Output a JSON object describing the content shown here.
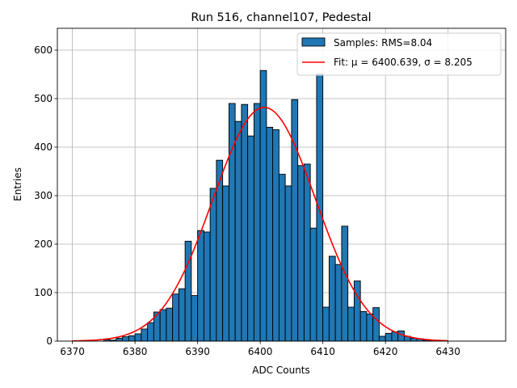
{
  "chart_data": {
    "type": "bar",
    "title": "Run 516, channel107, Pedestal",
    "xlabel": "ADC Counts",
    "ylabel": "Entries",
    "xlim": [
      6367.6,
      6439.2
    ],
    "ylim": [
      0,
      645
    ],
    "xticks": [
      6370,
      6380,
      6390,
      6400,
      6410,
      6420,
      6430
    ],
    "yticks": [
      0,
      100,
      200,
      300,
      400,
      500,
      600
    ],
    "grid": true,
    "legend_placement": "top-right",
    "bin_width": 1,
    "bin_start": 6375,
    "histogram": [
      3,
      2,
      6,
      9,
      11,
      15,
      25,
      38,
      60,
      65,
      68,
      97,
      108,
      206,
      94,
      228,
      225,
      315,
      373,
      320,
      490,
      453,
      488,
      423,
      490,
      558,
      441,
      436,
      344,
      320,
      498,
      362,
      365,
      233,
      551,
      70,
      175,
      158,
      237,
      70,
      124,
      61,
      56,
      69,
      10,
      16,
      19,
      21,
      10,
      6,
      5,
      2,
      1
    ],
    "fit": {
      "mu": 6400.639,
      "sigma": 8.205,
      "amplitude": 482,
      "x_range": [
        6370,
        6430
      ]
    },
    "series": [
      {
        "name": "Samples: RMS=8.04",
        "color": "#1f77b4",
        "edge": "#000000"
      },
      {
        "name": "Fit: μ = 6400.639, σ = 8.205",
        "color": "#ff0000"
      }
    ]
  }
}
